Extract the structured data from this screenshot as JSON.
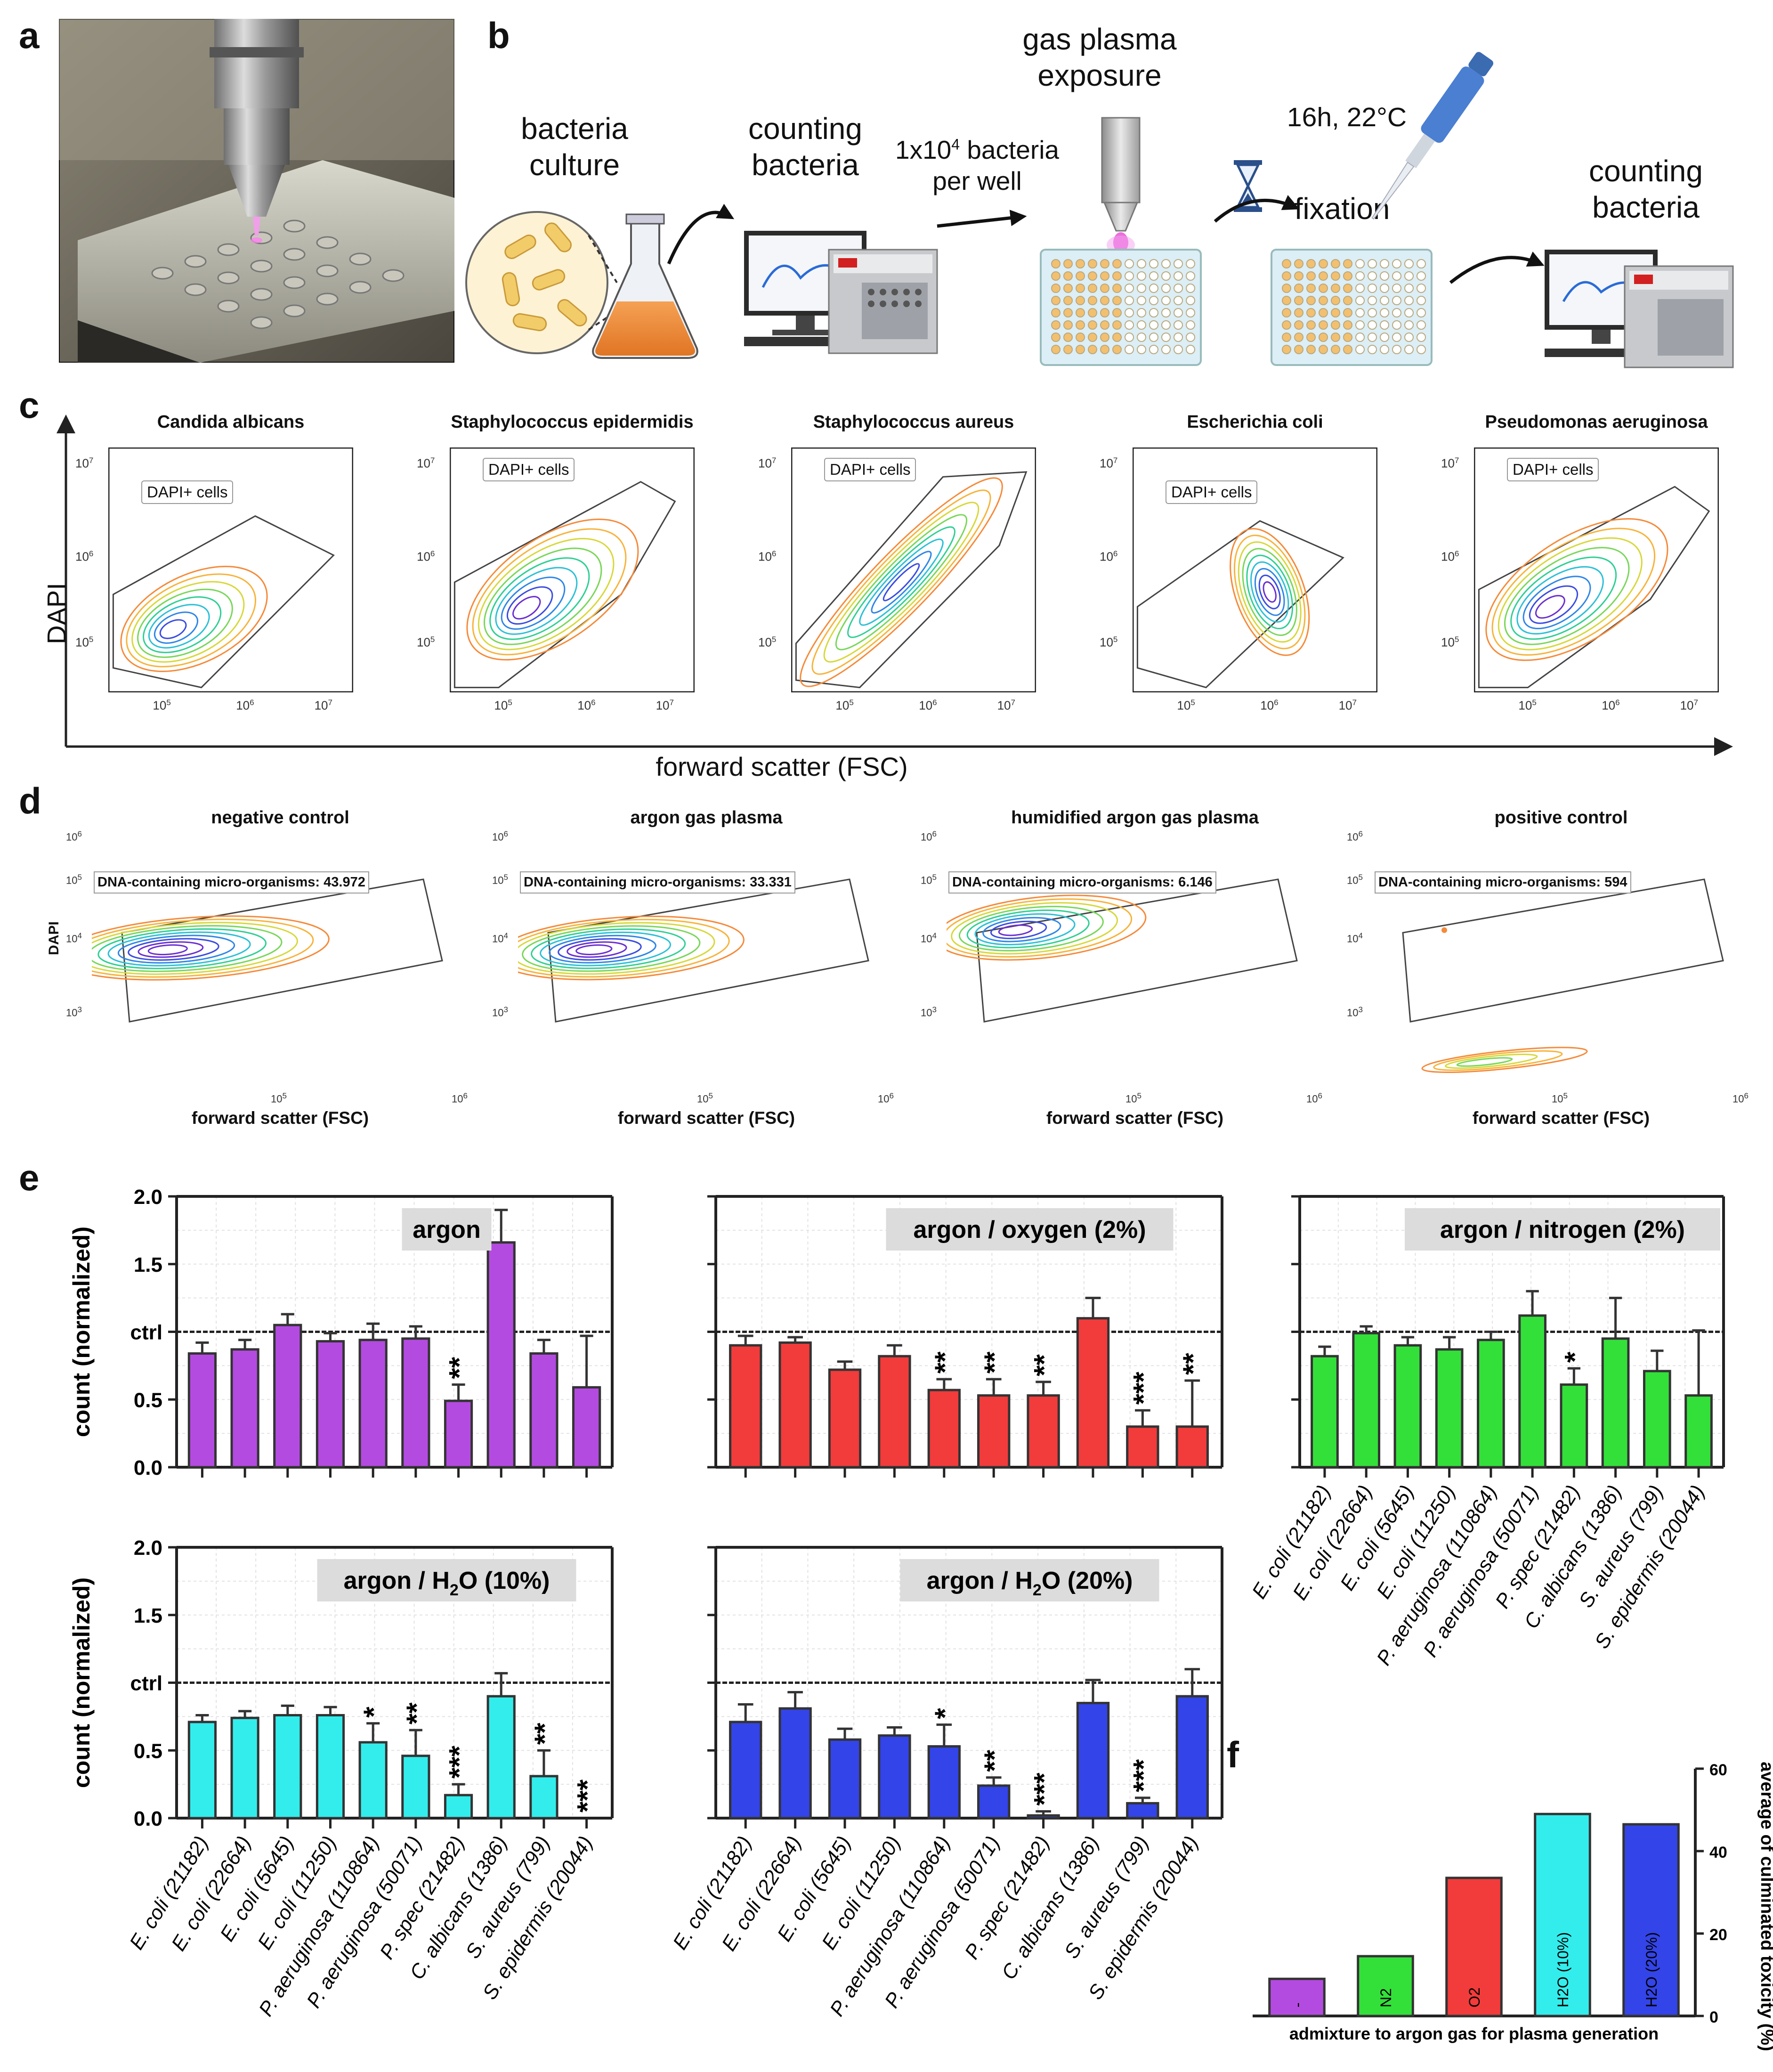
{
  "panel_labels": {
    "a": "a",
    "b": "b",
    "c": "c",
    "d": "d",
    "e": "e",
    "f": "f"
  },
  "workflow": {
    "bacteria_culture": "bacteria culture",
    "counting_bacteria_1": "counting bacteria",
    "seeding_1": "1x10",
    "seeding_exp": "4",
    "seeding_2": " bacteria per well",
    "gas_plasma_exposure": "gas plasma exposure",
    "incubation": "16h, 22°C",
    "fixation": "fixation",
    "counting_bacteria_2": "counting bacteria"
  },
  "flow_c": {
    "y_axis": "DAPI",
    "x_axis": "forward scatter (FSC)",
    "gate_label": "DAPI+ cells",
    "ticks": [
      "10",
      "5",
      "6",
      "7"
    ],
    "plots": [
      "Candida albicans",
      "Staphylococcus epidermidis",
      "Staphylococcus aureus",
      "Escherichia coli",
      "Pseudomonas aeruginosa"
    ]
  },
  "flow_d": {
    "y_axis": "DAPI",
    "x_axis": "forward scatter (FSC)",
    "ticks": [
      "10",
      "3",
      "4",
      "5",
      "6"
    ],
    "plots": [
      {
        "title": "negative control",
        "count": "DNA-containing micro-organisms: 43.972"
      },
      {
        "title": "argon gas plasma",
        "count": "DNA-containing micro-organisms: 33.331"
      },
      {
        "title": "humidified argon gas plasma",
        "count": "DNA-containing micro-organisms: 6.146"
      },
      {
        "title": "positive control",
        "count": "DNA-containing micro-organisms: 594"
      }
    ]
  },
  "chart_data": [
    {
      "type": "bar",
      "title": "argon",
      "ylabel": "count (normalized)",
      "ylim": [
        0,
        2.0
      ],
      "yticks": [
        "0.0",
        "0.5",
        "ctrl",
        "1.5",
        "2.0"
      ],
      "color": "#B44BE1",
      "categories": [
        "E. coli (21182)",
        "E. coli (22664)",
        "E. coli (5645)",
        "E. coli (11250)",
        "P. aeruginosa (110864)",
        "P. aeruginosa (50071)",
        "P. spec (21482)",
        "C. albicans (1386)",
        "S. aureus (799)",
        "S. epidermis (20044)"
      ],
      "values": [
        0.84,
        0.87,
        1.05,
        0.93,
        0.94,
        0.95,
        0.49,
        1.66,
        0.84,
        0.59
      ],
      "errors": [
        0.08,
        0.07,
        0.08,
        0.06,
        0.12,
        0.09,
        0.12,
        0.24,
        0.1,
        0.38
      ],
      "significance": [
        "",
        "",
        "",
        "",
        "",
        "",
        "**",
        "",
        "",
        ""
      ]
    },
    {
      "type": "bar",
      "title": "argon / oxygen (2%)",
      "ylabel": "",
      "ylim": [
        0,
        2.0
      ],
      "color": "#F23B3B",
      "categories": [
        "E. coli (21182)",
        "E. coli (22664)",
        "E. coli (5645)",
        "E. coli (11250)",
        "P. aeruginosa (110864)",
        "P. aeruginosa (50071)",
        "P. spec (21482)",
        "C. albicans (1386)",
        "S. aureus (799)",
        "S. epidermis (20044)"
      ],
      "values": [
        0.9,
        0.92,
        0.72,
        0.82,
        0.57,
        0.53,
        0.53,
        1.1,
        0.3,
        0.3
      ],
      "errors": [
        0.07,
        0.04,
        0.06,
        0.08,
        0.08,
        0.12,
        0.1,
        0.15,
        0.12,
        0.34
      ],
      "significance": [
        "",
        "",
        "",
        "",
        "**",
        "**",
        "**",
        "",
        "***",
        "**"
      ]
    },
    {
      "type": "bar",
      "title": "argon / nitrogen (2%)",
      "ylabel": "",
      "ylim": [
        0,
        2.0
      ],
      "color": "#33E03A",
      "categories": [
        "E. coli (21182)",
        "E. coli (22664)",
        "E. coli (5645)",
        "E. coli (11250)",
        "P. aeruginosa (110864)",
        "P. aeruginosa (50071)",
        "P. spec (21482)",
        "C. albicans (1386)",
        "S. aureus (799)",
        "S. epidermis (20044)"
      ],
      "values": [
        0.82,
        0.99,
        0.9,
        0.87,
        0.94,
        1.12,
        0.61,
        0.95,
        0.71,
        0.53
      ],
      "errors": [
        0.07,
        0.05,
        0.06,
        0.09,
        0.06,
        0.18,
        0.12,
        0.3,
        0.15,
        0.48
      ],
      "significance": [
        "",
        "",
        "",
        "",
        "",
        "",
        "*",
        "",
        "",
        ""
      ]
    },
    {
      "type": "bar",
      "title": "argon / H2O (10%)",
      "title_main": "argon / H",
      "title_sub": "2",
      "title_end": "O (10%)",
      "ylabel": "count (normalized)",
      "ylim": [
        0,
        2.0
      ],
      "yticks": [
        "0.0",
        "0.5",
        "ctrl",
        "1.5",
        "2.0"
      ],
      "color": "#33EDEC",
      "categories": [
        "E. coli (21182)",
        "E. coli (22664)",
        "E. coli (5645)",
        "E. coli (11250)",
        "P. aeruginosa (110864)",
        "P. aeruginosa (50071)",
        "P. spec (21482)",
        "C. albicans (1386)",
        "S. aureus (799)",
        "S. epidermis (20044)"
      ],
      "values": [
        0.71,
        0.74,
        0.76,
        0.76,
        0.56,
        0.46,
        0.17,
        0.9,
        0.31,
        0.0
      ],
      "errors": [
        0.05,
        0.05,
        0.07,
        0.06,
        0.14,
        0.19,
        0.08,
        0.17,
        0.19,
        0.0
      ],
      "significance": [
        "",
        "",
        "",
        "",
        "*",
        "**",
        "***",
        "",
        "**",
        "***"
      ]
    },
    {
      "type": "bar",
      "title": "argon / H2O (20%)",
      "title_main": "argon / H",
      "title_sub": "2",
      "title_end": "O (20%)",
      "ylabel": "",
      "ylim": [
        0,
        2.0
      ],
      "color": "#3344E8",
      "categories": [
        "E. coli (21182)",
        "E. coli (22664)",
        "E. coli (5645)",
        "E. coli (11250)",
        "P. aeruginosa (110864)",
        "P. aeruginosa (50071)",
        "P. spec (21482)",
        "C. albicans (1386)",
        "S. aureus (799)",
        "S. epidermis (20044)"
      ],
      "values": [
        0.71,
        0.81,
        0.58,
        0.61,
        0.53,
        0.24,
        0.02,
        0.85,
        0.11,
        0.9
      ],
      "errors": [
        0.13,
        0.12,
        0.08,
        0.06,
        0.16,
        0.06,
        0.03,
        0.17,
        0.04,
        0.2
      ],
      "significance": [
        "",
        "",
        "",
        "",
        "*",
        "**",
        "***",
        "",
        "***",
        ""
      ]
    },
    {
      "type": "bar",
      "title": "",
      "xlabel": "admixture to argon gas for plasma generation",
      "ylabel": "average of culminated toxicity (%)",
      "ylim": [
        0,
        60
      ],
      "yticks": [
        "0",
        "20",
        "40",
        "60"
      ],
      "categories": [
        "-",
        "N2",
        "O2",
        "H2O (10%)",
        "H2O (20%)"
      ],
      "values": [
        9,
        14.5,
        33.5,
        49,
        46.5
      ],
      "colors": [
        "#B44BE1",
        "#33E03A",
        "#F23B3B",
        "#33EDEC",
        "#3344E8"
      ]
    }
  ]
}
